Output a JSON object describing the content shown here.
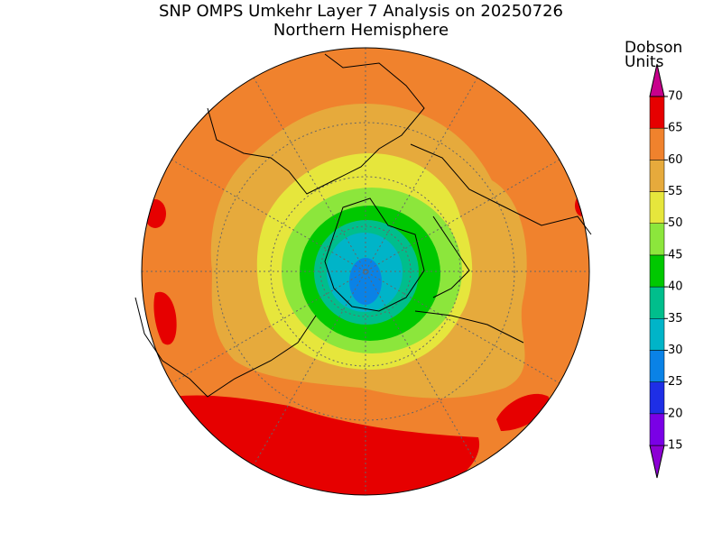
{
  "title": "SNP OMPS Umkehr Layer 7 Analysis on 20250726",
  "subtitle": "Northern Hemisphere",
  "colorbar": {
    "label_lines": [
      "Dobson",
      "Units"
    ],
    "ticks": [
      15,
      20,
      25,
      30,
      35,
      40,
      45,
      50,
      55,
      60,
      65,
      70
    ],
    "colors": [
      "#8c00d4",
      "#7a00e6",
      "#1e2ee6",
      "#0a82e6",
      "#00b4c8",
      "#00be8c",
      "#00c800",
      "#8ce63c",
      "#e6e63c",
      "#e6aa3c",
      "#f0822d",
      "#e60000",
      "#c8008c"
    ]
  }
}
